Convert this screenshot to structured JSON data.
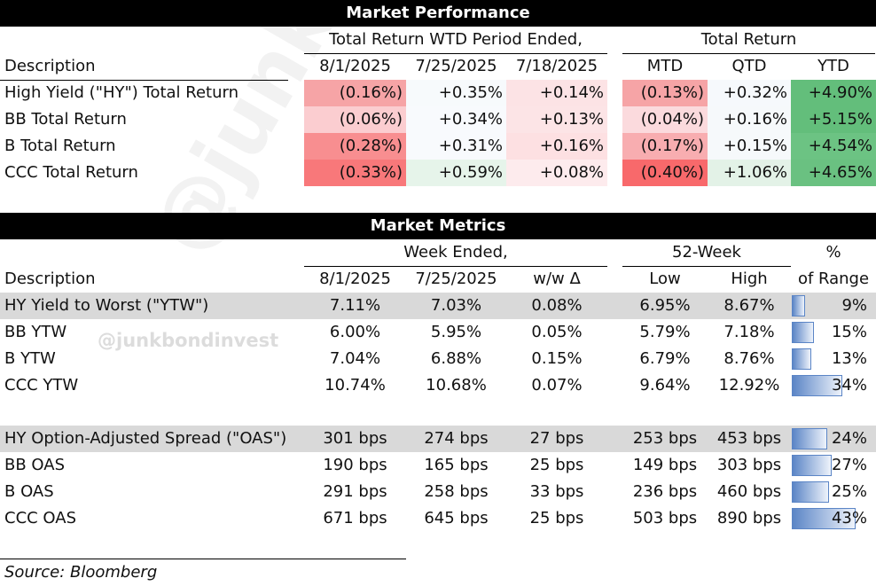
{
  "performance": {
    "title": "Market Performance",
    "group_wtd": "Total Return WTD Period Ended,",
    "group_total": "Total Return",
    "desc_header": "Description",
    "col_dates": [
      "8/1/2025",
      "7/25/2025",
      "7/18/2025"
    ],
    "col_periods": [
      "MTD",
      "QTD",
      "YTD"
    ],
    "rows": [
      {
        "label": "High Yield (\"HY\") Total Return",
        "vals": [
          "(0.16%)",
          "+0.35%",
          "+0.14%",
          "(0.13%)",
          "+0.32%",
          "+4.90%"
        ]
      },
      {
        "label": "BB Total Return",
        "vals": [
          "(0.06%)",
          "+0.34%",
          "+0.13%",
          "(0.04%)",
          "+0.16%",
          "+5.15%"
        ]
      },
      {
        "label": "B Total Return",
        "vals": [
          "(0.28%)",
          "+0.31%",
          "+0.16%",
          "(0.17%)",
          "+0.15%",
          "+4.54%"
        ]
      },
      {
        "label": "CCC Total Return",
        "vals": [
          "(0.33%)",
          "+0.59%",
          "+0.08%",
          "(0.40%)",
          "+1.06%",
          "+4.65%"
        ]
      }
    ],
    "colors": [
      [
        "#f6a4a6",
        "#f7fafc",
        "#fce3e5",
        "#f6a4a6",
        "#f6f9fc",
        "#63be7b"
      ],
      [
        "#fbcdd0",
        "#f8fafd",
        "#fce4e6",
        "#fbdadd",
        "#f6f9fb",
        "#63be7b"
      ],
      [
        "#f88e90",
        "#f8fafd",
        "#fde0e2",
        "#f8adb0",
        "#f6f9fb",
        "#6cc383"
      ],
      [
        "#f8787a",
        "#e6f4ea",
        "#fdebed",
        "#f8696b",
        "#e3f2e7",
        "#6ac181"
      ]
    ]
  },
  "metrics": {
    "title": "Market Metrics",
    "group_week": "Week Ended,",
    "group_52": "52-Week",
    "pct_top": "%",
    "pct_bottom": "of Range",
    "desc_header": "Description",
    "col_dates": [
      "8/1/2025",
      "7/25/2025",
      "w/w Δ"
    ],
    "col_lowhigh": [
      "Low",
      "High"
    ],
    "ytw_rows": [
      {
        "label": "HY Yield to Worst (\"YTW\")",
        "vals": [
          "7.11%",
          "7.03%",
          "0.08%",
          "6.95%",
          "8.67%"
        ],
        "pct": "9%",
        "frac": 0.09
      },
      {
        "label": "BB YTW",
        "vals": [
          "6.00%",
          "5.95%",
          "0.05%",
          "5.79%",
          "7.18%"
        ],
        "pct": "15%",
        "frac": 0.15
      },
      {
        "label": "B YTW",
        "vals": [
          "7.04%",
          "6.88%",
          "0.15%",
          "6.79%",
          "8.76%"
        ],
        "pct": "13%",
        "frac": 0.13
      },
      {
        "label": "CCC YTW",
        "vals": [
          "10.74%",
          "10.68%",
          "0.07%",
          "9.64%",
          "12.92%"
        ],
        "pct": "34%",
        "frac": 0.34
      }
    ],
    "oas_rows": [
      {
        "label": "HY Option-Adjusted Spread (\"OAS\")",
        "vals": [
          "301 bps",
          "274 bps",
          "27 bps",
          "253 bps",
          "453 bps"
        ],
        "pct": "24%",
        "frac": 0.24
      },
      {
        "label": "BB OAS",
        "vals": [
          "190 bps",
          "165 bps",
          "25 bps",
          "149 bps",
          "303 bps"
        ],
        "pct": "27%",
        "frac": 0.27
      },
      {
        "label": "B OAS",
        "vals": [
          "291 bps",
          "258 bps",
          "33 bps",
          "236 bps",
          "460 bps"
        ],
        "pct": "25%",
        "frac": 0.25
      },
      {
        "label": "CCC OAS",
        "vals": [
          "671 bps",
          "645 bps",
          "25 bps",
          "503 bps",
          "890 bps"
        ],
        "pct": "43%",
        "frac": 0.43
      }
    ]
  },
  "source": "Source: Bloomberg",
  "watermark": "@junkbondinvest",
  "handle": "@junkbondinvest"
}
